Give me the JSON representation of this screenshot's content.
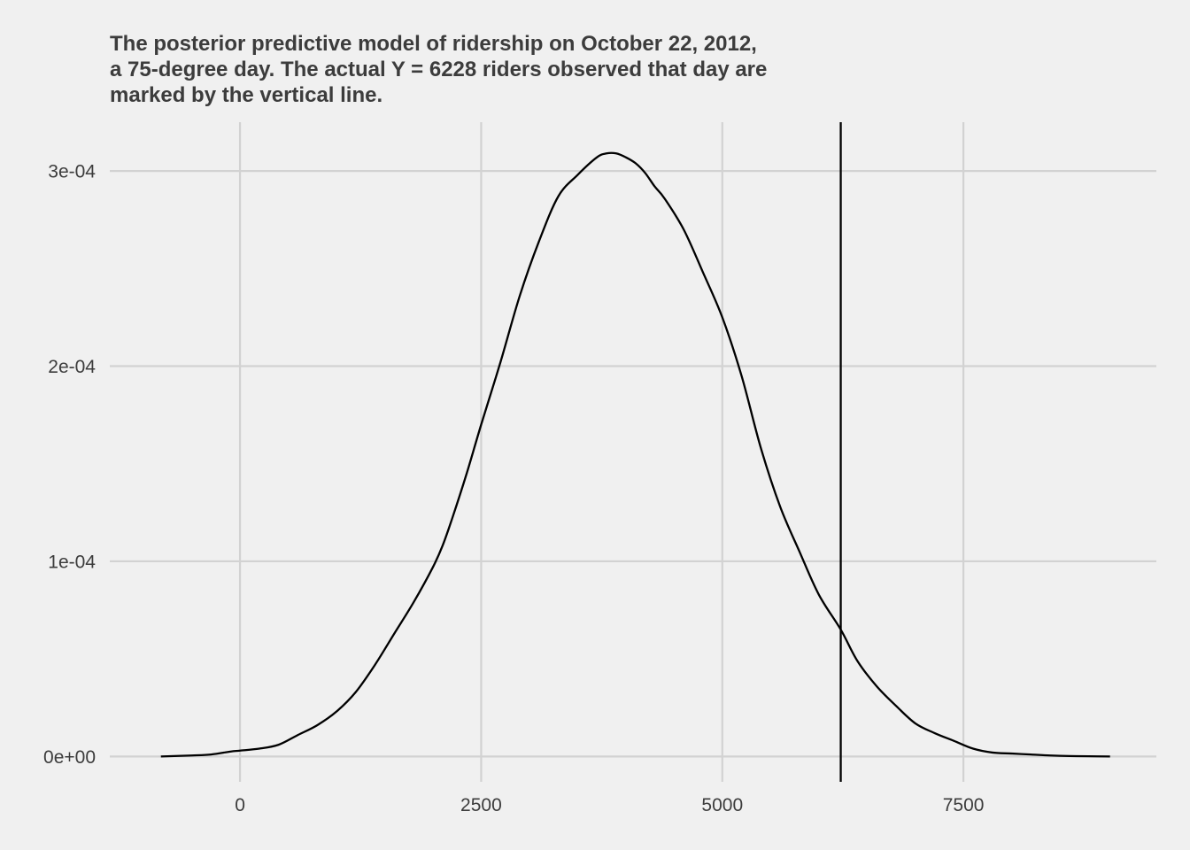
{
  "chart_data": {
    "type": "area",
    "title": [
      "The posterior predictive model of ridership on October 22, 2012,",
      "a 75-degree day. The actual Y = 6228 riders observed that day are",
      "marked by the vertical line."
    ],
    "xlabel": "",
    "ylabel": "",
    "xlim": [
      -1350,
      9500
    ],
    "ylim": [
      -1.3e-05,
      0.000325
    ],
    "x_ticks": [
      0,
      2500,
      5000,
      7500
    ],
    "x_tick_labels": [
      "0",
      "2500",
      "5000",
      "7500"
    ],
    "y_ticks": [
      0,
      0.0001,
      0.0002,
      0.0003
    ],
    "y_tick_labels": [
      "0e+00",
      "1e-04",
      "2e-04",
      "3e-04"
    ],
    "grid": true,
    "vline": 6228,
    "series": [
      {
        "x": [
          -820,
          -500,
          -300,
          -100,
          0,
          200,
          400,
          600,
          800,
          1000,
          1200,
          1400,
          1600,
          1800,
          2000,
          2100,
          2200,
          2350,
          2500,
          2700,
          2900,
          3100,
          3300,
          3500,
          3700,
          3800,
          3900,
          4000,
          4100,
          4200,
          4300,
          4400,
          4600,
          4800,
          5000,
          5200,
          5400,
          5600,
          5800,
          6000,
          6228,
          6400,
          6600,
          6800,
          7000,
          7200,
          7400,
          7600,
          7800,
          8000,
          8200,
          8400,
          8600,
          8800,
          9020
        ],
        "y": [
          0.0,
          5e-07,
          1e-06,
          2.5e-06,
          3e-06,
          4e-06,
          6e-06,
          1.1e-05,
          1.6e-05,
          2.3e-05,
          3.3e-05,
          4.7e-05,
          6.3e-05,
          7.9e-05,
          9.7e-05,
          0.000108,
          0.000122,
          0.000145,
          0.00017,
          0.000202,
          0.000236,
          0.000264,
          0.000287,
          0.000298,
          0.000307,
          0.000309,
          0.000309,
          0.000307,
          0.000304,
          0.000299,
          0.000292,
          0.000286,
          0.00027,
          0.000248,
          0.000225,
          0.000195,
          0.000158,
          0.000128,
          0.000105,
          8.3e-05,
          6.5e-05,
          4.9e-05,
          3.6e-05,
          2.6e-05,
          1.7e-05,
          1.2e-05,
          8e-06,
          4e-06,
          2e-06,
          1.5e-06,
          1e-06,
          5e-07,
          2e-07,
          1e-07,
          0.0
        ]
      }
    ]
  }
}
